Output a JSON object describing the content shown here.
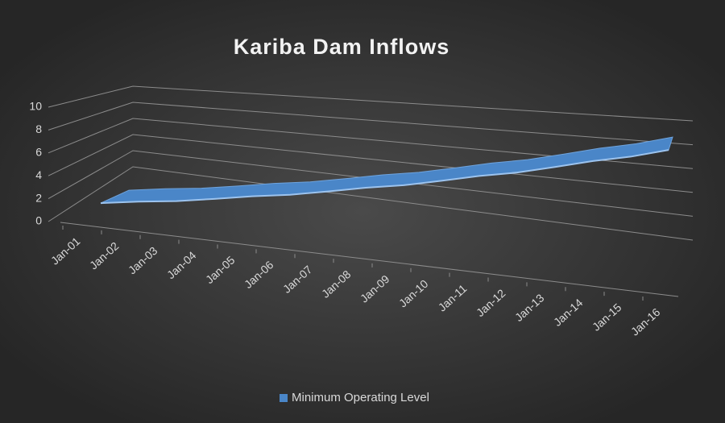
{
  "chart_data": {
    "type": "line3d",
    "title": "Kariba Dam Inflows",
    "categories": [
      "Jan-01",
      "Jan-02",
      "Jan-03",
      "Jan-04",
      "Jan-05",
      "Jan-06",
      "Jan-07",
      "Jan-08",
      "Jan-09",
      "Jan-10",
      "Jan-11",
      "Jan-12",
      "Jan-13",
      "Jan-14",
      "Jan-15",
      "Jan-16"
    ],
    "series": [
      {
        "name": "Minimum Operating Level",
        "color": "#4a86c8",
        "values": [
          1.8,
          2.2,
          2.5,
          2.9,
          3.3,
          3.6,
          4.0,
          4.4,
          4.7,
          5.1,
          5.5,
          5.8,
          6.2,
          6.6,
          6.9,
          7.3
        ]
      }
    ],
    "ylim": [
      0,
      10
    ],
    "yticks": [
      0,
      2,
      4,
      6,
      8,
      10
    ],
    "grid": true,
    "legend": "bottom"
  }
}
